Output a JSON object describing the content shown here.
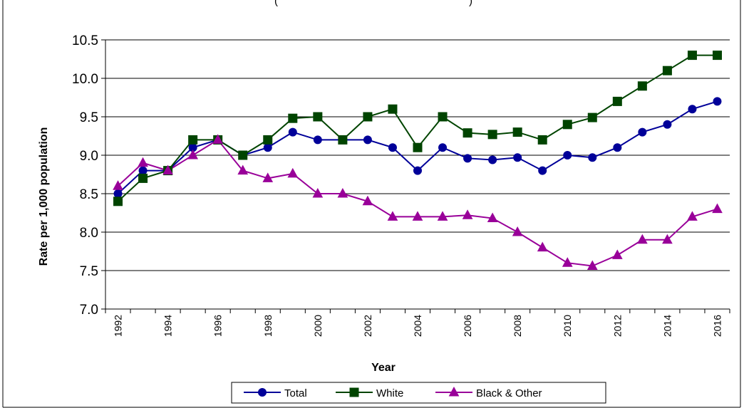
{
  "chart_data": {
    "type": "line",
    "title": "",
    "title_fragment": "(",
    "title_fragment_end": ")",
    "xlabel": "Year",
    "ylabel": "Rate per 1,000 population",
    "ylim": [
      7.0,
      10.5
    ],
    "yticks": [
      "7.0",
      "7.5",
      "8.0",
      "8.5",
      "9.0",
      "9.5",
      "10.0",
      "10.5"
    ],
    "x": [
      1992,
      1993,
      1994,
      1995,
      1996,
      1997,
      1998,
      1999,
      2000,
      2001,
      2002,
      2003,
      2004,
      2005,
      2006,
      2007,
      2008,
      2009,
      2010,
      2011,
      2012,
      2013,
      2014,
      2015,
      2016
    ],
    "xtick_labels": [
      "1992",
      "1994",
      "1996",
      "1998",
      "2000",
      "2002",
      "2004",
      "2006",
      "2008",
      "2010",
      "2012",
      "2014",
      "2016"
    ],
    "grid": "horizontal",
    "legend_position": "bottom",
    "series": [
      {
        "name": "Total",
        "color": "#000099",
        "marker": "circle",
        "values": [
          8.5,
          8.8,
          8.8,
          9.1,
          9.2,
          9.0,
          9.1,
          9.3,
          9.2,
          9.2,
          9.2,
          9.1,
          8.8,
          9.1,
          8.96,
          8.94,
          8.97,
          8.8,
          9.0,
          8.97,
          9.1,
          9.3,
          9.4,
          9.6,
          9.7
        ]
      },
      {
        "name": "White",
        "color": "#004400",
        "marker": "square",
        "values": [
          8.4,
          8.7,
          8.8,
          9.2,
          9.2,
          9.0,
          9.2,
          9.48,
          9.5,
          9.2,
          9.5,
          9.6,
          9.1,
          9.5,
          9.29,
          9.27,
          9.3,
          9.2,
          9.4,
          9.49,
          9.7,
          9.9,
          10.1,
          10.3,
          10.3
        ]
      },
      {
        "name": "Black & Other",
        "color": "#990099",
        "marker": "triangle",
        "values": [
          8.6,
          8.9,
          8.8,
          9.0,
          9.2,
          8.8,
          8.7,
          8.76,
          8.5,
          8.5,
          8.4,
          8.2,
          8.2,
          8.2,
          8.22,
          8.18,
          8.0,
          7.8,
          7.6,
          7.56,
          7.7,
          7.9,
          7.9,
          8.2,
          8.3
        ]
      }
    ]
  }
}
